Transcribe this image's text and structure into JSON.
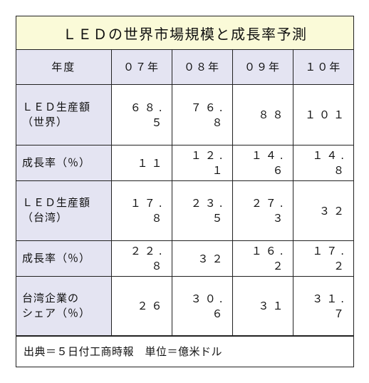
{
  "title": "ＬＥＤの世界市場規模と成長率予測",
  "table": {
    "header": {
      "label": "年度",
      "years": [
        "０７年",
        "０８年",
        "０９年",
        "１０年"
      ]
    },
    "rows": [
      {
        "label_lines": [
          "ＬＥＤ生産額",
          "（世界）"
        ],
        "values": [
          "６８.５",
          "７６.８",
          "８８",
          "１０１"
        ]
      },
      {
        "label_lines": [
          "成長率（％）"
        ],
        "values": [
          "１１",
          "１２.１",
          "１４.６",
          "１４.８"
        ]
      },
      {
        "label_lines": [
          "ＬＥＤ生産額",
          "（台湾）"
        ],
        "values": [
          "１７.８",
          "２３.５",
          "２７.３",
          "３２"
        ]
      },
      {
        "label_lines": [
          "成長率（％）"
        ],
        "values": [
          "２２.８",
          "３２",
          "１６.２",
          "１７.２"
        ]
      },
      {
        "label_lines": [
          "台湾企業の",
          "シェア（％）"
        ],
        "values": [
          "２６",
          "３０.６",
          "３１",
          "３１.７"
        ]
      }
    ]
  },
  "footer": {
    "source": "出典＝５日付工商時報　単位＝億米ドル"
  },
  "colors": {
    "title_background": "#fafad8",
    "header_background": "#e4e4f2",
    "border": "#222222"
  }
}
